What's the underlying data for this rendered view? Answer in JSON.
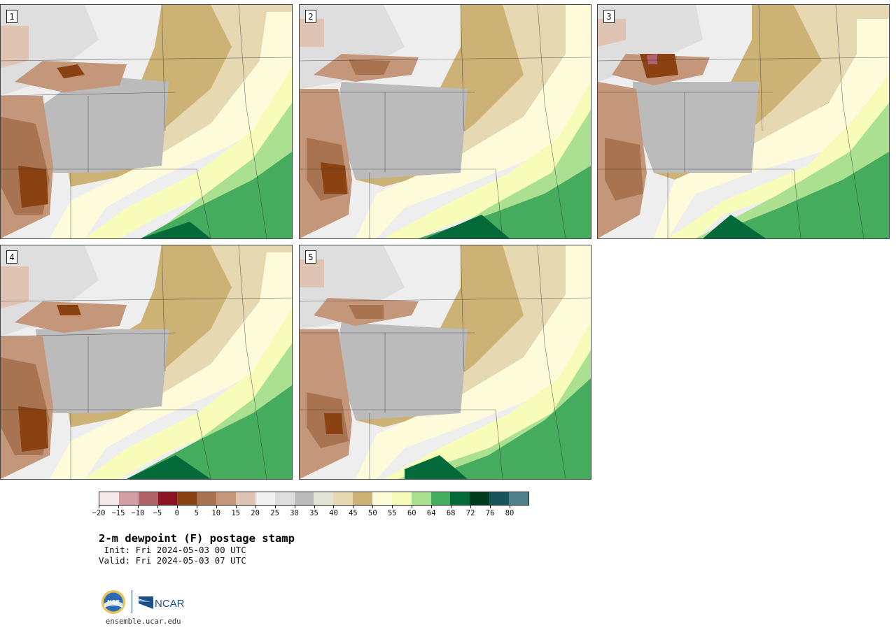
{
  "panels": [
    {
      "label": "1"
    },
    {
      "label": "2"
    },
    {
      "label": "3"
    },
    {
      "label": "4"
    },
    {
      "label": "5"
    }
  ],
  "colorbar": {
    "colors": [
      "#f5e9eb",
      "#d29ea5",
      "#b0636b",
      "#8a1522",
      "#8a4212",
      "#a87350",
      "#c4977b",
      "#e0c4b3",
      "#f1f1f1",
      "#dedede",
      "#bbbbbb",
      "#e1e3d6",
      "#e6d8b1",
      "#cdb275",
      "#fefbdb",
      "#f7fdb9",
      "#aae08f",
      "#45ac5e",
      "#046a3a",
      "#013b1e",
      "#1a545b",
      "#4f7f89"
    ],
    "tick_labels": [
      "−20",
      "−15",
      "−10",
      "−5",
      "0",
      "5",
      "10",
      "15",
      "20",
      "25",
      "30",
      "35",
      "40",
      "45",
      "50",
      "55",
      "60",
      "64",
      "68",
      "72",
      "76",
      "80"
    ]
  },
  "title": "2-m dewpoint (F) postage stamp",
  "init": " Init: Fri 2024-05-03 00 UTC",
  "valid": "Valid: Fri 2024-05-03 07 UTC",
  "logos": {
    "left_logo": "NSF",
    "right_logo": "NCAR"
  },
  "site": "ensemble.ucar.edu"
}
